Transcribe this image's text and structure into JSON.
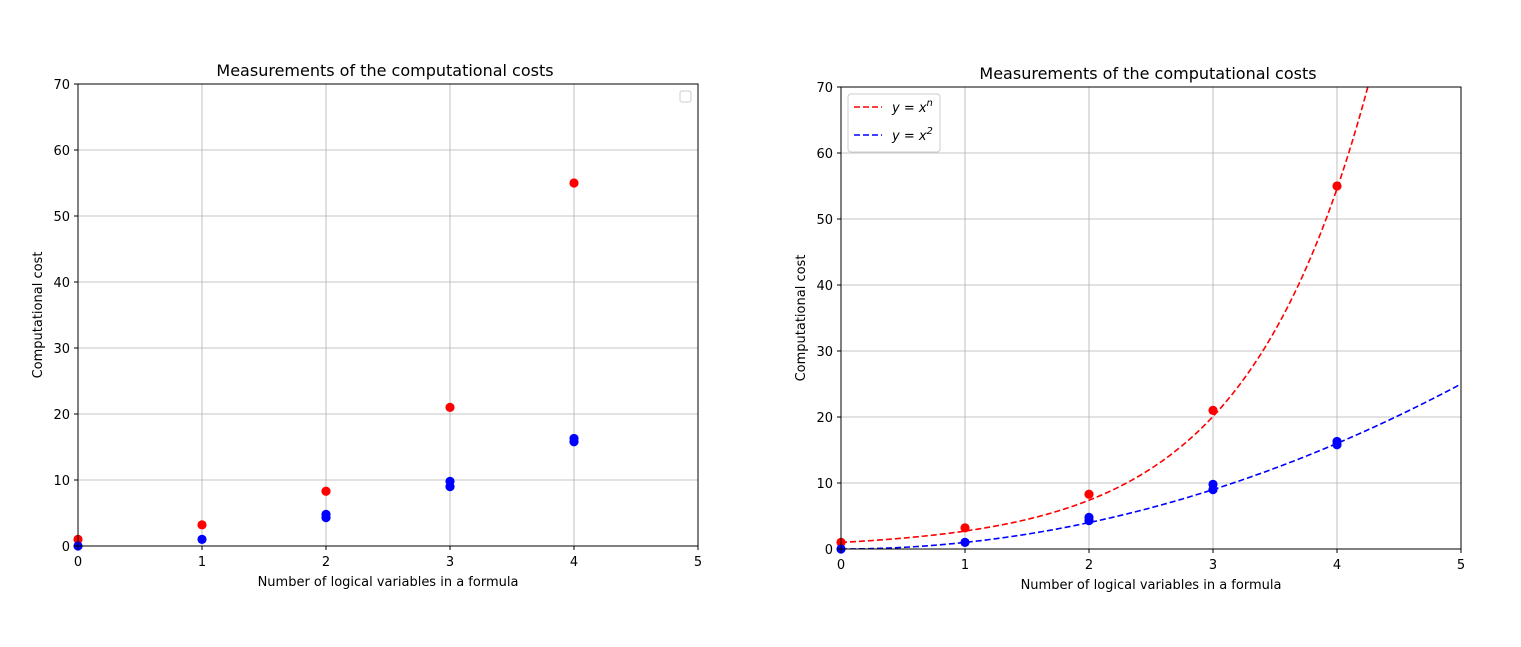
{
  "chart_data": [
    {
      "type": "scatter",
      "title": "Measurements of the computational costs",
      "xlabel": "Number of logical variables in a formula",
      "ylabel": "Computational cost",
      "xlim": [
        0,
        5
      ],
      "ylim": [
        0,
        70
      ],
      "xticks": [
        "0",
        "1",
        "2",
        "3",
        "4",
        "5"
      ],
      "yticks": [
        "0",
        "10",
        "20",
        "30",
        "40",
        "50",
        "60",
        "70"
      ],
      "grid": true,
      "legend": {
        "placement": "top-right",
        "entries": []
      },
      "series": [
        {
          "color": "#ff0000",
          "points": [
            [
              0,
              1
            ],
            [
              1,
              3.2
            ],
            [
              2,
              8.3
            ],
            [
              3,
              21
            ],
            [
              4,
              55
            ]
          ]
        },
        {
          "color": "#0000ff",
          "points": [
            [
              0,
              0
            ],
            [
              1,
              1
            ],
            [
              2,
              4.3
            ],
            [
              2,
              4.8
            ],
            [
              3,
              9
            ],
            [
              3,
              9.8
            ],
            [
              4,
              15.8
            ],
            [
              4,
              16.3
            ]
          ]
        }
      ]
    },
    {
      "type": "scatter",
      "title": "Measurements of the computational costs",
      "xlabel": "Number of logical variables in a formula",
      "ylabel": "Computational cost",
      "xlim": [
        0,
        5
      ],
      "ylim": [
        0,
        70
      ],
      "xticks": [
        "0",
        "1",
        "2",
        "3",
        "4",
        "5"
      ],
      "yticks": [
        "0",
        "10",
        "20",
        "30",
        "40",
        "50",
        "60",
        "70"
      ],
      "grid": true,
      "legend": {
        "placement": "top-left",
        "entries": [
          {
            "label": "y = x^n",
            "base": "y = x",
            "sup": "n",
            "color": "#ff0000",
            "style": "dashed"
          },
          {
            "label": "y = x^2",
            "base": "y = x",
            "sup": "2",
            "color": "#0000ff",
            "style": "dashed"
          }
        ]
      },
      "series": [
        {
          "color": "#ff0000",
          "points": [
            [
              0,
              1
            ],
            [
              1,
              3.2
            ],
            [
              2,
              8.3
            ],
            [
              3,
              21
            ],
            [
              4,
              55
            ]
          ]
        },
        {
          "color": "#0000ff",
          "points": [
            [
              0,
              0
            ],
            [
              1,
              1
            ],
            [
              2,
              4.3
            ],
            [
              2,
              4.8
            ],
            [
              3,
              9
            ],
            [
              3,
              9.8
            ],
            [
              4,
              15.8
            ],
            [
              4,
              16.3
            ]
          ]
        }
      ],
      "curves": [
        {
          "name": "y = x^n",
          "formula": "exp(x)",
          "color": "#ff0000",
          "style": "dashed"
        },
        {
          "name": "y = x^2",
          "formula": "x^2",
          "color": "#0000ff",
          "style": "dashed"
        }
      ]
    }
  ]
}
